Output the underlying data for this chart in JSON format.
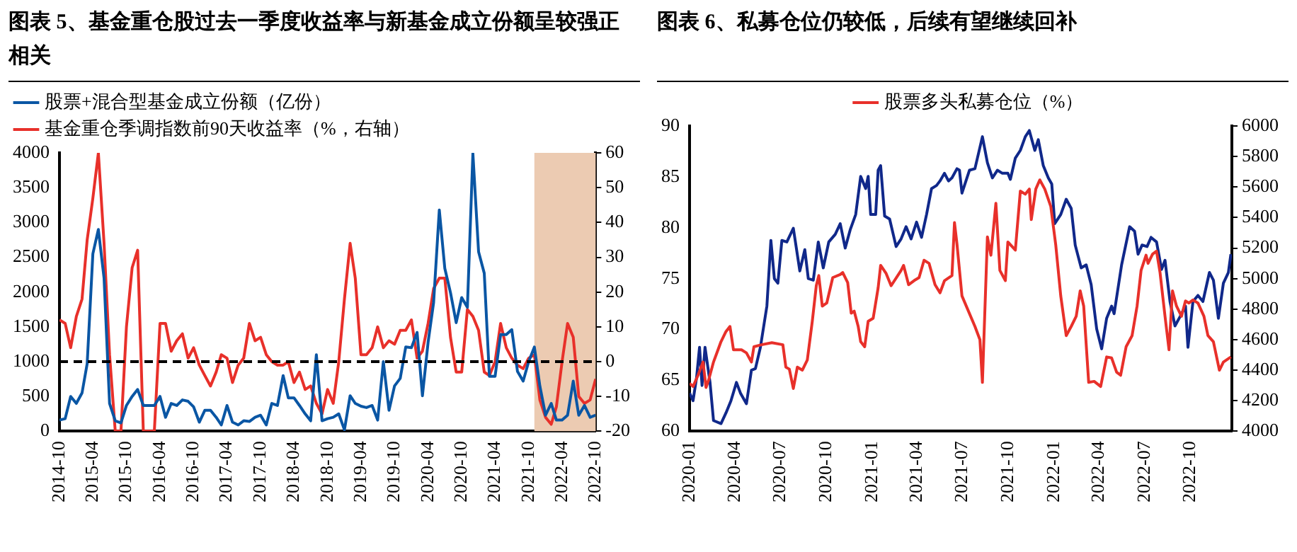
{
  "chart_data": [
    {
      "type": "line",
      "title": "图表 5、基金重仓股过去一季度收益率与新基金成立份额呈较强正相关",
      "x": [
        "2014-10",
        "2014-11",
        "2014-12",
        "2015-01",
        "2015-02",
        "2015-03",
        "2015-04",
        "2015-05",
        "2015-06",
        "2015-07",
        "2015-08",
        "2015-09",
        "2015-10",
        "2015-11",
        "2015-12",
        "2016-01",
        "2016-02",
        "2016-03",
        "2016-04",
        "2016-05",
        "2016-06",
        "2016-07",
        "2016-08",
        "2016-09",
        "2016-10",
        "2016-11",
        "2016-12",
        "2017-01",
        "2017-02",
        "2017-03",
        "2017-04",
        "2017-05",
        "2017-06",
        "2017-07",
        "2017-08",
        "2017-09",
        "2017-10",
        "2017-11",
        "2017-12",
        "2018-01",
        "2018-02",
        "2018-03",
        "2018-04",
        "2018-05",
        "2018-06",
        "2018-07",
        "2018-08",
        "2018-09",
        "2018-10",
        "2018-11",
        "2018-12",
        "2019-01",
        "2019-02",
        "2019-03",
        "2019-04",
        "2019-05",
        "2019-06",
        "2019-07",
        "2019-08",
        "2019-09",
        "2019-10",
        "2019-11",
        "2019-12",
        "2020-01",
        "2020-02",
        "2020-03",
        "2020-04",
        "2020-05",
        "2020-06",
        "2020-07",
        "2020-08",
        "2020-09",
        "2020-10",
        "2020-11",
        "2020-12",
        "2021-01",
        "2021-02",
        "2021-03",
        "2021-04",
        "2021-05",
        "2021-06",
        "2021-07",
        "2021-08",
        "2021-09",
        "2021-10",
        "2021-11",
        "2021-12",
        "2022-01",
        "2022-02",
        "2022-03",
        "2022-04",
        "2022-05",
        "2022-06",
        "2022-07",
        "2022-08",
        "2022-09",
        "2022-10"
      ],
      "series": [
        {
          "name": "股票+混合型基金成立份额（亿份）",
          "color": "#0a56a4",
          "values": [
            160,
            180,
            500,
            400,
            550,
            970,
            2550,
            2900,
            2200,
            400,
            150,
            120,
            370,
            500,
            600,
            370,
            370,
            370,
            500,
            200,
            400,
            370,
            450,
            430,
            350,
            130,
            300,
            300,
            200,
            90,
            370,
            130,
            90,
            150,
            140,
            200,
            230,
            90,
            400,
            370,
            800,
            480,
            480,
            370,
            250,
            150,
            1100,
            150,
            180,
            200,
            250,
            20,
            510,
            400,
            360,
            340,
            370,
            160,
            1000,
            300,
            650,
            760,
            1210,
            1200,
            1420,
            510,
            1280,
            1850,
            3180,
            2340,
            1990,
            1560,
            1920,
            1780,
            3990,
            2580,
            2270,
            790,
            790,
            1390,
            1390,
            1460,
            860,
            720,
            1000,
            1210,
            650,
            230,
            400,
            160,
            160,
            230,
            720,
            230,
            370,
            200,
            230
          ]
        },
        {
          "name": "基金重仓季调指数前90天收益率（%，右轴）",
          "color": "#e8302a",
          "axis": "y2",
          "values": [
            12,
            11,
            4,
            13,
            18,
            35,
            47,
            60,
            34,
            2,
            -20,
            -20,
            10,
            27,
            32,
            -20,
            -20,
            -20,
            11,
            11,
            3,
            6,
            8,
            1,
            4,
            -1,
            -4,
            -7,
            -3,
            2,
            1,
            -6,
            -1,
            1,
            11,
            6,
            7,
            2,
            0,
            -1,
            -1,
            0,
            -6,
            -3,
            -8,
            -7,
            -12,
            -15,
            -8,
            -12,
            0,
            18,
            34,
            24,
            2,
            2,
            4,
            10,
            4,
            6,
            5,
            9,
            9,
            12,
            1,
            3,
            11,
            21,
            24,
            24,
            7,
            -3,
            -3,
            15,
            13,
            9,
            -3,
            -4,
            0,
            11,
            4,
            1,
            -1,
            -2,
            1,
            2,
            -11,
            -16,
            -18,
            -13,
            0,
            11,
            7,
            -10,
            -12,
            -11,
            -5
          ]
        }
      ],
      "xlim": [
        "2014-10",
        "2022-10"
      ],
      "xticks": [
        "2014-10",
        "2015-04",
        "2015-10",
        "2016-04",
        "2016-10",
        "2017-04",
        "2017-10",
        "2018-04",
        "2018-10",
        "2019-04",
        "2019-10",
        "2020-04",
        "2020-10",
        "2021-04",
        "2021-10",
        "2022-04",
        "2022-10"
      ],
      "ylim": [
        0,
        4000
      ],
      "yticks": [
        0,
        500,
        1000,
        1500,
        2000,
        2500,
        3000,
        3500,
        4000
      ],
      "y2lim": [
        -20,
        60
      ],
      "y2ticks": [
        -20,
        -10,
        0,
        10,
        20,
        30,
        40,
        50,
        60
      ],
      "ref_lines": [
        {
          "axis": "y",
          "value": 1000,
          "color": "#000000",
          "line_style": "dashed"
        }
      ],
      "bands": [
        {
          "axis": "x",
          "from": "2021-11",
          "to": "2022-10",
          "color": "#eccbb2"
        }
      ],
      "legend": "top left",
      "marker": "none",
      "line_style": "solid",
      "grid": false
    },
    {
      "type": "line",
      "title": "图表 6、私募仓位仍较低，后续有望继续回补",
      "series": [
        {
          "name": "股票多头私募仓位（%）",
          "color": "#e8302a",
          "x": [
            "2020-01-01",
            "2020-01-08",
            "2020-01-18",
            "2020-01-28",
            "2020-02-03",
            "2020-02-08",
            "2020-02-18",
            "2020-03-04",
            "2020-03-14",
            "2020-03-22",
            "2020-03-29",
            "2020-04-14",
            "2020-04-24",
            "2020-05-04",
            "2020-05-09",
            "2020-05-24",
            "2020-06-14",
            "2020-07-06",
            "2020-07-12",
            "2020-07-19",
            "2020-07-27",
            "2020-08-04",
            "2020-08-14",
            "2020-08-24",
            "2020-09-03",
            "2020-09-11",
            "2020-09-16",
            "2020-09-23",
            "2020-10-02",
            "2020-10-14",
            "2020-10-29",
            "2020-11-03",
            "2020-11-13",
            "2020-11-20",
            "2020-11-26",
            "2020-12-04",
            "2020-12-09",
            "2020-12-17",
            "2020-12-24",
            "2021-01-03",
            "2021-01-13",
            "2021-01-18",
            "2021-01-29",
            "2021-02-08",
            "2021-02-28",
            "2021-03-05",
            "2021-03-15",
            "2021-03-26",
            "2021-04-05",
            "2021-04-15",
            "2021-04-25",
            "2021-05-07",
            "2021-05-17",
            "2021-05-26",
            "2021-06-10",
            "2021-06-15",
            "2021-06-20",
            "2021-06-30",
            "2021-07-26",
            "2021-08-05",
            "2021-08-10",
            "2021-08-20",
            "2021-08-27",
            "2021-09-06",
            "2021-09-14",
            "2021-09-25",
            "2021-09-30",
            "2021-10-15",
            "2021-10-25",
            "2021-11-04",
            "2021-11-12",
            "2021-11-16",
            "2021-11-25",
            "2021-12-03",
            "2021-12-13",
            "2021-12-25",
            "2022-01-04",
            "2022-01-14",
            "2022-01-25",
            "2022-02-04",
            "2022-02-14",
            "2022-02-22",
            "2022-03-01",
            "2022-03-11",
            "2022-03-22",
            "2022-04-04",
            "2022-04-16",
            "2022-04-26",
            "2022-05-06",
            "2022-05-14",
            "2022-05-25",
            "2022-06-06",
            "2022-06-16",
            "2022-06-24",
            "2022-07-04",
            "2022-07-08",
            "2022-07-17",
            "2022-07-25",
            "2022-08-01",
            "2022-08-11",
            "2022-08-19",
            "2022-08-26",
            "2022-09-03",
            "2022-09-13",
            "2022-09-21",
            "2022-09-28",
            "2022-10-06",
            "2022-10-16",
            "2022-10-28",
            "2022-11-05",
            "2022-11-16",
            "2022-11-28",
            "2022-12-06",
            "2022-12-21"
          ],
          "values": [
            64.7,
            64.4,
            65.5,
            66.8,
            64.3,
            65,
            66.8,
            68.8,
            69.8,
            70.3,
            68,
            68,
            67.7,
            66.8,
            68.3,
            68.5,
            68.7,
            68.5,
            66.3,
            66.1,
            64.2,
            66.3,
            66,
            67,
            70.8,
            74.3,
            75.3,
            72.3,
            72.6,
            75.1,
            75.4,
            75.6,
            74.6,
            71.6,
            71.8,
            70.3,
            68.8,
            68.3,
            70.8,
            71.1,
            74.1,
            76.3,
            75.5,
            74.3,
            75.8,
            76.3,
            74.4,
            74.8,
            75.1,
            76.8,
            76.5,
            74.4,
            73.6,
            74.8,
            75.3,
            80.5,
            78.4,
            73.3,
            70.3,
            69,
            64.8,
            79.1,
            77.3,
            82.4,
            75.8,
            74.8,
            78.6,
            77.8,
            83.6,
            83.3,
            83.8,
            80.8,
            83.8,
            84.7,
            83.8,
            82.1,
            78.3,
            73.3,
            69.4,
            70.3,
            71.3,
            73.8,
            72.3,
            64.8,
            64.9,
            64.4,
            67.3,
            67.2,
            65.8,
            65.5,
            68.3,
            69.4,
            72.3,
            75.8,
            77.3,
            76.5,
            77.4,
            77.7,
            75.6,
            71.3,
            68,
            73.8,
            72.3,
            71.3,
            72.8,
            72.6,
            72.9,
            72.6,
            71.3,
            69.4,
            68.8,
            66,
            66.8,
            67.3
          ]
        },
        {
          "color": "#10288a",
          "axis": "y2",
          "x": [
            "2020-01-01",
            "2020-01-08",
            "2020-01-15",
            "2020-01-21",
            "2020-01-26",
            "2020-02-01",
            "2020-02-11",
            "2020-02-18",
            "2020-03-04",
            "2020-03-14",
            "2020-03-24",
            "2020-04-04",
            "2020-04-12",
            "2020-04-24",
            "2020-05-04",
            "2020-05-12",
            "2020-05-22",
            "2020-06-04",
            "2020-06-12",
            "2020-06-19",
            "2020-06-26",
            "2020-07-04",
            "2020-07-14",
            "2020-07-27",
            "2020-08-09",
            "2020-08-19",
            "2020-08-26",
            "2020-09-05",
            "2020-09-15",
            "2020-09-25",
            "2020-10-06",
            "2020-10-19",
            "2020-10-29",
            "2020-11-08",
            "2020-11-18",
            "2020-11-29",
            "2020-12-09",
            "2020-12-19",
            "2020-12-24",
            "2020-12-29",
            "2021-01-08",
            "2021-01-13",
            "2021-01-18",
            "2021-01-26",
            "2021-02-05",
            "2021-02-18",
            "2021-02-28",
            "2021-03-10",
            "2021-03-20",
            "2021-03-31",
            "2021-04-10",
            "2021-04-20",
            "2021-04-30",
            "2021-05-10",
            "2021-05-17",
            "2021-05-26",
            "2021-06-03",
            "2021-06-10",
            "2021-06-20",
            "2021-06-25",
            "2021-06-30",
            "2021-07-15",
            "2021-07-26",
            "2021-08-10",
            "2021-08-20",
            "2021-08-30",
            "2021-09-09",
            "2021-09-19",
            "2021-09-30",
            "2021-10-05",
            "2021-10-15",
            "2021-10-25",
            "2021-11-04",
            "2021-11-12",
            "2021-11-23",
            "2021-11-30",
            "2021-12-10",
            "2021-12-20",
            "2021-12-27",
            "2022-01-02",
            "2022-01-14",
            "2022-01-25",
            "2022-02-04",
            "2022-02-12",
            "2022-02-24",
            "2022-03-06",
            "2022-03-16",
            "2022-03-27",
            "2022-04-06",
            "2022-04-16",
            "2022-04-26",
            "2022-05-01",
            "2022-05-16",
            "2022-06-01",
            "2022-06-11",
            "2022-06-18",
            "2022-06-26",
            "2022-07-06",
            "2022-07-14",
            "2022-07-25",
            "2022-08-04",
            "2022-08-11",
            "2022-08-21",
            "2022-08-31",
            "2022-09-10",
            "2022-09-21",
            "2022-09-26",
            "2022-10-06",
            "2022-10-16",
            "2022-10-26",
            "2022-11-08",
            "2022-11-16",
            "2022-11-26",
            "2022-12-06",
            "2022-12-16",
            "2022-12-21"
          ],
          "values": [
            4250,
            4200,
            4350,
            4550,
            4300,
            4550,
            4320,
            4070,
            4050,
            4120,
            4200,
            4320,
            4250,
            4180,
            4400,
            4410,
            4550,
            4820,
            5250,
            5000,
            4970,
            5250,
            5240,
            5330,
            5050,
            5190,
            5000,
            4990,
            5240,
            5070,
            5240,
            5290,
            5360,
            5200,
            5320,
            5420,
            5670,
            5590,
            5670,
            5420,
            5420,
            5710,
            5740,
            5410,
            5390,
            5210,
            5260,
            5340,
            5260,
            5370,
            5270,
            5420,
            5590,
            5610,
            5640,
            5690,
            5640,
            5660,
            5720,
            5710,
            5560,
            5710,
            5720,
            5930,
            5760,
            5660,
            5710,
            5690,
            5690,
            5650,
            5790,
            5840,
            5930,
            5970,
            5840,
            5910,
            5740,
            5660,
            5620,
            5360,
            5420,
            5520,
            5460,
            5220,
            5070,
            5090,
            4960,
            4670,
            4540,
            4740,
            4820,
            4770,
            5090,
            5340,
            5310,
            5160,
            5220,
            5210,
            5270,
            5240,
            5060,
            5120,
            4850,
            4690,
            4750,
            4820,
            4550,
            4850,
            4890,
            4850,
            5040,
            4990,
            4740,
            4970,
            5040,
            5160
          ]
        }
      ],
      "xlim": [
        "2020-01-01",
        "2022-12-23"
      ],
      "xticks": [
        {
          "value": "2020-01-01",
          "label": "2020-01"
        },
        {
          "value": "2020-04-01",
          "label": "2020-04"
        },
        {
          "value": "2020-07-01",
          "label": "2020-07"
        },
        {
          "value": "2020-10-01",
          "label": "2020-10"
        },
        {
          "value": "2021-01-01",
          "label": "2021-01"
        },
        {
          "value": "2021-04-01",
          "label": "2021-04"
        },
        {
          "value": "2021-07-01",
          "label": "2021-07"
        },
        {
          "value": "2021-10-01",
          "label": "2021-10"
        },
        {
          "value": "2022-01-01",
          "label": "2022-01"
        },
        {
          "value": "2022-04-01",
          "label": "2022-04"
        },
        {
          "value": "2022-07-01",
          "label": "2022-07"
        },
        {
          "value": "2022-10-01",
          "label": "2022-10"
        }
      ],
      "ylim": [
        60,
        90
      ],
      "yticks": [
        60,
        65,
        70,
        75,
        80,
        85,
        90
      ],
      "y2lim": [
        4000,
        6000
      ],
      "y2ticks": [
        4000,
        4200,
        4400,
        4600,
        4800,
        5000,
        5200,
        5400,
        5600,
        5800,
        6000
      ],
      "legend": "top",
      "marker": "none",
      "line_style": "solid",
      "grid": false
    }
  ]
}
